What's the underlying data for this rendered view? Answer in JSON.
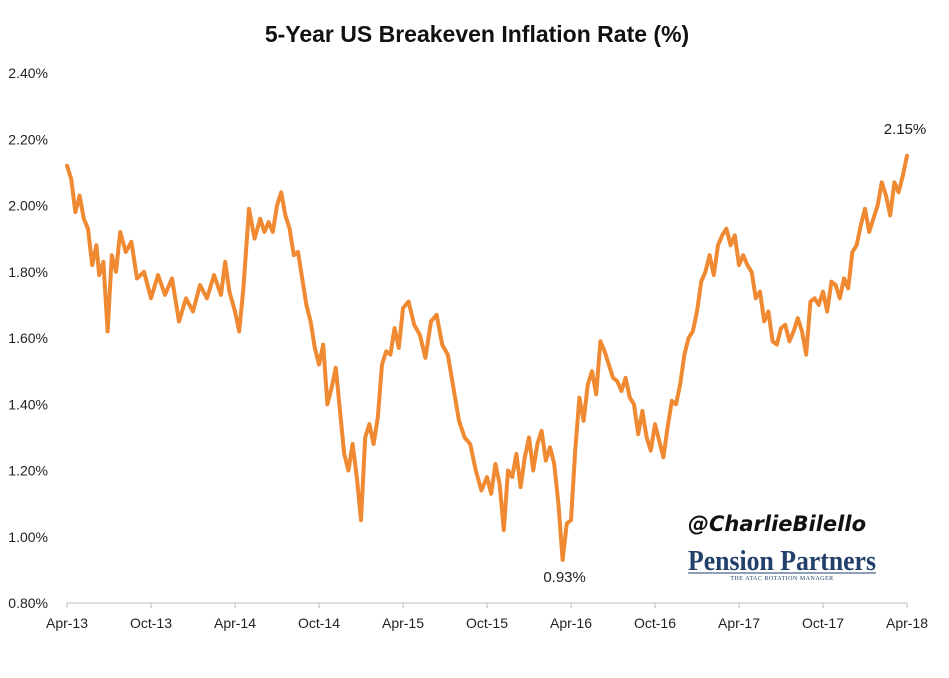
{
  "chart_data": {
    "type": "line",
    "title": "5-Year US Breakeven Inflation Rate (%)",
    "xlabel": "",
    "ylabel": "",
    "ylim": [
      0.8,
      2.4
    ],
    "xlim": [
      0,
      60
    ],
    "grid": false,
    "legend": "none",
    "y_ticks": [
      0.8,
      1.0,
      1.2,
      1.4,
      1.6,
      1.8,
      2.0,
      2.2,
      2.4
    ],
    "y_tick_labels": [
      "0.80%",
      "1.00%",
      "1.20%",
      "1.40%",
      "1.60%",
      "1.80%",
      "2.00%",
      "2.20%",
      "2.40%"
    ],
    "x_ticks": [
      0,
      6,
      12,
      18,
      24,
      30,
      36,
      42,
      48,
      54,
      60
    ],
    "x_tick_labels": [
      "Apr-13",
      "Oct-13",
      "Apr-14",
      "Oct-14",
      "Apr-15",
      "Oct-15",
      "Apr-16",
      "Oct-16",
      "Apr-17",
      "Oct-17",
      "Apr-18"
    ],
    "series": [
      {
        "name": "5-Year US Breakeven Inflation Rate",
        "color": "#f08a32",
        "x": [
          0,
          0.3,
          0.6,
          0.9,
          1.2,
          1.5,
          1.8,
          2.1,
          2.3,
          2.6,
          2.9,
          3.2,
          3.5,
          3.8,
          4.2,
          4.6,
          5.0,
          5.5,
          6.0,
          6.5,
          7.0,
          7.5,
          8.0,
          8.5,
          9.0,
          9.5,
          10.0,
          10.5,
          11.0,
          11.3,
          11.6,
          12.0,
          12.3,
          12.6,
          13.0,
          13.4,
          13.8,
          14.1,
          14.4,
          14.7,
          15.0,
          15.3,
          15.6,
          15.9,
          16.2,
          16.5,
          16.8,
          17.1,
          17.4,
          17.7,
          18.0,
          18.3,
          18.6,
          18.9,
          19.2,
          19.5,
          19.8,
          20.1,
          20.4,
          20.7,
          21.0,
          21.3,
          21.6,
          21.9,
          22.2,
          22.5,
          22.8,
          23.1,
          23.4,
          23.7,
          24.0,
          24.4,
          24.8,
          25.2,
          25.6,
          26.0,
          26.4,
          26.8,
          27.2,
          27.6,
          28.0,
          28.4,
          28.8,
          29.2,
          29.6,
          30.0,
          30.3,
          30.6,
          30.9,
          31.2,
          31.5,
          31.8,
          32.1,
          32.4,
          32.7,
          33.0,
          33.3,
          33.6,
          33.9,
          34.2,
          34.5,
          34.8,
          35.1,
          35.4,
          35.7,
          36.0,
          36.3,
          36.6,
          36.9,
          37.2,
          37.5,
          37.8,
          38.1,
          38.4,
          38.7,
          39.0,
          39.3,
          39.6,
          39.9,
          40.2,
          40.5,
          40.8,
          41.1,
          41.4,
          41.7,
          42.0,
          42.3,
          42.6,
          42.9,
          43.2,
          43.5,
          43.8,
          44.1,
          44.4,
          44.7,
          45.0,
          45.3,
          45.6,
          45.9,
          46.2,
          46.5,
          46.8,
          47.1,
          47.4,
          47.7,
          48.0,
          48.3,
          48.6,
          48.9,
          49.2,
          49.5,
          49.8,
          50.1,
          50.4,
          50.7,
          51.0,
          51.3,
          51.6,
          51.9,
          52.2,
          52.5,
          52.8,
          53.1,
          53.4,
          53.7,
          54.0,
          54.3,
          54.6,
          54.9,
          55.2,
          55.5,
          55.8,
          56.1,
          56.4,
          56.7,
          57.0,
          57.3,
          57.6,
          57.9,
          58.2,
          58.5,
          58.8,
          59.1,
          59.4,
          59.7,
          60.0
        ],
        "values": [
          2.12,
          2.08,
          1.98,
          2.03,
          1.96,
          1.93,
          1.82,
          1.88,
          1.79,
          1.83,
          1.62,
          1.85,
          1.8,
          1.92,
          1.86,
          1.89,
          1.78,
          1.8,
          1.72,
          1.79,
          1.73,
          1.78,
          1.65,
          1.72,
          1.68,
          1.76,
          1.72,
          1.79,
          1.73,
          1.83,
          1.74,
          1.68,
          1.62,
          1.75,
          1.99,
          1.9,
          1.96,
          1.92,
          1.95,
          1.92,
          2.0,
          2.04,
          1.97,
          1.93,
          1.85,
          1.86,
          1.78,
          1.7,
          1.65,
          1.57,
          1.52,
          1.58,
          1.4,
          1.45,
          1.51,
          1.38,
          1.25,
          1.2,
          1.28,
          1.18,
          1.05,
          1.3,
          1.34,
          1.28,
          1.36,
          1.52,
          1.56,
          1.55,
          1.63,
          1.57,
          1.69,
          1.71,
          1.64,
          1.61,
          1.54,
          1.65,
          1.67,
          1.58,
          1.55,
          1.45,
          1.35,
          1.3,
          1.28,
          1.2,
          1.14,
          1.18,
          1.13,
          1.22,
          1.16,
          1.02,
          1.2,
          1.18,
          1.25,
          1.15,
          1.24,
          1.3,
          1.2,
          1.28,
          1.32,
          1.23,
          1.27,
          1.22,
          1.1,
          0.93,
          1.04,
          1.05,
          1.26,
          1.42,
          1.35,
          1.46,
          1.5,
          1.43,
          1.59,
          1.56,
          1.52,
          1.48,
          1.47,
          1.44,
          1.48,
          1.42,
          1.4,
          1.31,
          1.38,
          1.3,
          1.26,
          1.34,
          1.29,
          1.24,
          1.33,
          1.41,
          1.4,
          1.46,
          1.55,
          1.6,
          1.62,
          1.68,
          1.77,
          1.8,
          1.85,
          1.79,
          1.88,
          1.91,
          1.93,
          1.88,
          1.91,
          1.82,
          1.85,
          1.82,
          1.8,
          1.72,
          1.74,
          1.65,
          1.68,
          1.59,
          1.58,
          1.63,
          1.64,
          1.59,
          1.62,
          1.66,
          1.62,
          1.55,
          1.71,
          1.72,
          1.7,
          1.74,
          1.68,
          1.77,
          1.76,
          1.72,
          1.78,
          1.75,
          1.86,
          1.88,
          1.94,
          1.99,
          1.92,
          1.96,
          2.0,
          2.07,
          2.03,
          1.97,
          2.07,
          2.04,
          2.09,
          2.15
        ]
      }
    ],
    "annotations": [
      {
        "label": "2.15%",
        "x": 60,
        "y": 2.15,
        "position": "above"
      },
      {
        "label": "0.93%",
        "x": 35.4,
        "y": 0.93,
        "position": "below"
      }
    ]
  },
  "watermark": {
    "handle": "@CharlieBilello",
    "brand": "Pension Partners",
    "brand_tagline": "THE ATAC ROTATION MANAGER"
  }
}
